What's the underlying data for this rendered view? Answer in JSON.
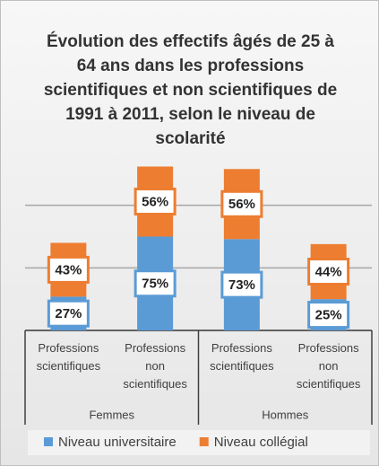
{
  "chart_data": {
    "type": "bar",
    "stacked": true,
    "title": "Évolution des effectifs âgés de 25 à 64 ans dans les professions scientifiques et non scientifiques de 1991 à 2011, selon le niveau de scolarité",
    "groups": [
      "Femmes",
      "Hommes"
    ],
    "categories": [
      "Professions scientifiques",
      "Professions non scientifiques",
      "Professions scientifiques",
      "Professions non scientifiques"
    ],
    "series": [
      {
        "name": "Niveau universitaire",
        "color": "#5b9bd5",
        "values": [
          27,
          75,
          73,
          25
        ],
        "value_labels": [
          "27%",
          "75%",
          "73%",
          "25%"
        ]
      },
      {
        "name": "Niveau collégial",
        "color": "#ed7d31",
        "values": [
          43,
          56,
          56,
          44
        ],
        "value_labels": [
          "43%",
          "56%",
          "56%",
          "44%"
        ]
      }
    ],
    "ylim": [
      0,
      150
    ],
    "yticks": [
      0,
      50,
      100
    ],
    "grid": true,
    "legend": "bottom"
  }
}
